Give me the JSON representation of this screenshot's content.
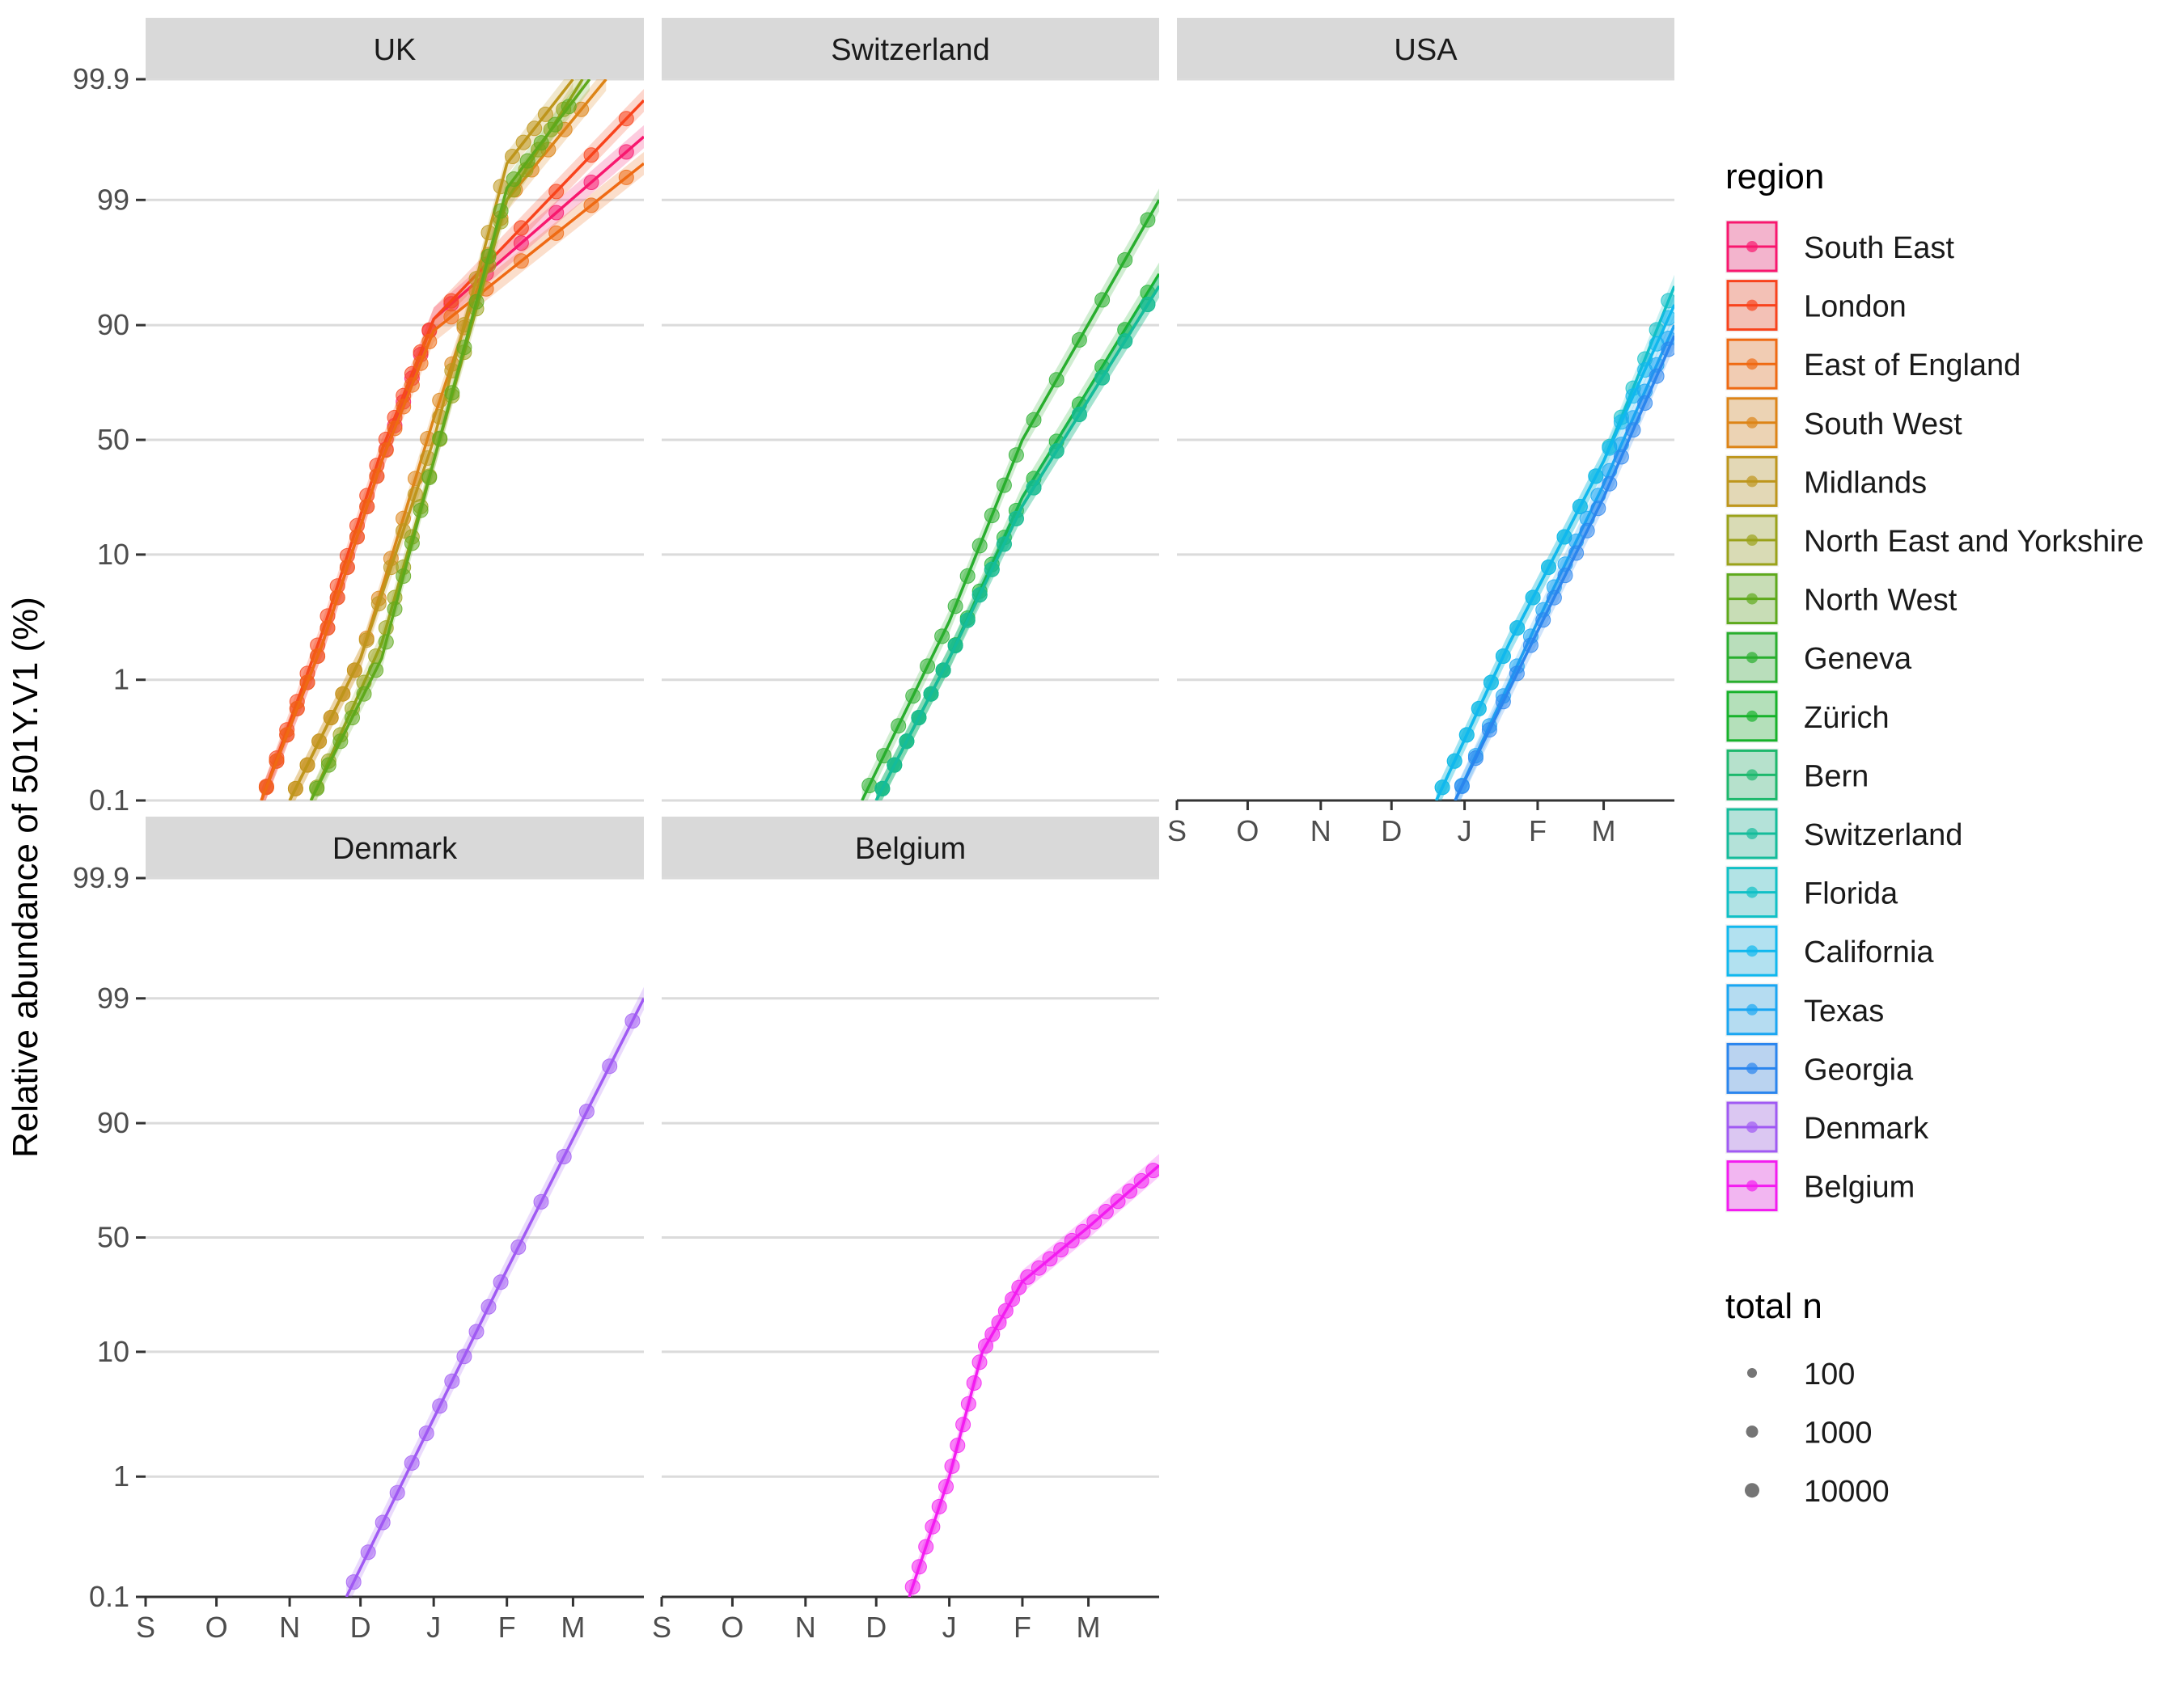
{
  "chart_data": {
    "type": "scatter",
    "title": "",
    "ylabel": "Relative abundance of 501Y.V1 (%)",
    "xlabel": "",
    "y_scale": "logit",
    "y_ticks": [
      0.1,
      1,
      10,
      50,
      90,
      99,
      99.9
    ],
    "y_tick_labels": [
      "0.1",
      "1",
      "10",
      "50",
      "90",
      "99",
      "99.9"
    ],
    "x_ticks": [
      "2020-09-01",
      "2020-10-01",
      "2020-11-01",
      "2020-12-01",
      "2021-01-01",
      "2021-02-01",
      "2021-03-01"
    ],
    "x_tick_labels": [
      "S",
      "O",
      "N",
      "D",
      "J",
      "F",
      "M"
    ],
    "x_range": [
      "2020-09-01",
      "2021-03-31"
    ],
    "grid": "horizontal major",
    "legend_placement": "right",
    "legend_region_title": "region",
    "legend_size_title": "total n",
    "size_legend": [
      "100",
      "1000",
      "10000"
    ],
    "regions": [
      {
        "name": "South East",
        "color": "#F8176E"
      },
      {
        "name": "London",
        "color": "#F8431C"
      },
      {
        "name": "East of England",
        "color": "#EF6A13"
      },
      {
        "name": "South West",
        "color": "#DD8417"
      },
      {
        "name": "Midlands",
        "color": "#BE961C"
      },
      {
        "name": "North East and Yorkshire",
        "color": "#9AA21A"
      },
      {
        "name": "North West",
        "color": "#5EA91C"
      },
      {
        "name": "Geneva",
        "color": "#29AE2E"
      },
      {
        "name": "Zürich",
        "color": "#17B22B"
      },
      {
        "name": "Bern",
        "color": "#1DB86D"
      },
      {
        "name": "Switzerland",
        "color": "#14BC9B"
      },
      {
        "name": "Florida",
        "color": "#10C0C6"
      },
      {
        "name": "California",
        "color": "#10B8EE"
      },
      {
        "name": "Texas",
        "color": "#1AA6F2"
      },
      {
        "name": "Georgia",
        "color": "#2A85EE"
      },
      {
        "name": "Denmark",
        "color": "#A05AF3"
      },
      {
        "name": "Belgium",
        "color": "#F31CF0"
      }
    ],
    "panels": [
      {
        "strip": "UK",
        "fits": [
          {
            "region": "South East",
            "points": [
              [
                "2020-10-20",
                0.1
              ],
              [
                "2020-11-15",
                2
              ],
              [
                "2020-12-10",
                40
              ],
              [
                "2021-01-01",
                91
              ],
              [
                "2021-03-31",
                99.7
              ]
            ]
          },
          {
            "region": "London",
            "points": [
              [
                "2020-10-20",
                0.1
              ],
              [
                "2020-11-15",
                2.5
              ],
              [
                "2020-12-10",
                45
              ],
              [
                "2021-01-01",
                91
              ],
              [
                "2021-03-31",
                99.85
              ]
            ]
          },
          {
            "region": "East of England",
            "points": [
              [
                "2020-10-20",
                0.1
              ],
              [
                "2020-11-15",
                2
              ],
              [
                "2020-12-10",
                40
              ],
              [
                "2021-01-01",
                89
              ],
              [
                "2021-03-31",
                99.5
              ]
            ]
          },
          {
            "region": "South West",
            "points": [
              [
                "2020-11-01",
                0.1
              ],
              [
                "2020-12-01",
                1.5
              ],
              [
                "2021-01-01",
                60
              ],
              [
                "2021-02-01",
                99
              ],
              [
                "2021-03-15",
                99.9
              ]
            ]
          },
          {
            "region": "Midlands",
            "points": [
              [
                "2020-11-01",
                0.1
              ],
              [
                "2020-12-01",
                1.5
              ],
              [
                "2021-01-01",
                50
              ],
              [
                "2021-02-01",
                99.5
              ],
              [
                "2021-03-01",
                99.9
              ]
            ]
          },
          {
            "region": "North East and Yorkshire",
            "points": [
              [
                "2020-11-10",
                0.1
              ],
              [
                "2020-12-10",
                2
              ],
              [
                "2021-01-01",
                40
              ],
              [
                "2021-02-01",
                99
              ],
              [
                "2021-03-05",
                99.9
              ]
            ]
          },
          {
            "region": "North West",
            "points": [
              [
                "2020-11-10",
                0.1
              ],
              [
                "2020-12-10",
                1.5
              ],
              [
                "2021-01-01",
                40
              ],
              [
                "2021-02-01",
                99.2
              ],
              [
                "2021-03-08",
                99.9
              ]
            ]
          }
        ]
      },
      {
        "strip": "Switzerland",
        "fits": [
          {
            "region": "Geneva",
            "points": [
              [
                "2020-11-25",
                0.1
              ],
              [
                "2021-01-01",
                3
              ],
              [
                "2021-02-01",
                50
              ],
              [
                "2021-03-31",
                99
              ]
            ]
          },
          {
            "region": "Zürich",
            "points": [
              [
                "2020-12-01",
                0.1
              ],
              [
                "2021-01-01",
                1.5
              ],
              [
                "2021-02-01",
                25
              ],
              [
                "2021-03-31",
                96
              ]
            ]
          },
          {
            "region": "Bern",
            "points": [
              [
                "2020-12-01",
                0.1
              ],
              [
                "2021-01-01",
                1.5
              ],
              [
                "2021-02-01",
                22
              ],
              [
                "2021-03-31",
                95
              ]
            ]
          },
          {
            "region": "Switzerland",
            "points": [
              [
                "2020-12-01",
                0.1
              ],
              [
                "2021-01-01",
                1.5
              ],
              [
                "2021-02-01",
                22
              ],
              [
                "2021-03-31",
                95
              ]
            ]
          }
        ]
      },
      {
        "strip": "USA",
        "fits": [
          {
            "region": "Florida",
            "points": [
              [
                "2020-12-20",
                0.1
              ],
              [
                "2021-01-20",
                2
              ],
              [
                "2021-03-01",
                40
              ],
              [
                "2021-03-31",
                95
              ]
            ]
          },
          {
            "region": "California",
            "points": [
              [
                "2020-12-20",
                0.1
              ],
              [
                "2021-01-20",
                2
              ],
              [
                "2021-03-01",
                40
              ],
              [
                "2021-03-31",
                93
              ]
            ]
          },
          {
            "region": "Texas",
            "points": [
              [
                "2020-12-28",
                0.1
              ],
              [
                "2021-02-01",
                3
              ],
              [
                "2021-03-01",
                30
              ],
              [
                "2021-03-31",
                90
              ]
            ]
          },
          {
            "region": "Georgia",
            "points": [
              [
                "2020-12-28",
                0.1
              ],
              [
                "2021-02-01",
                2.5
              ],
              [
                "2021-03-01",
                25
              ],
              [
                "2021-03-31",
                88
              ]
            ]
          }
        ]
      },
      {
        "strip": "Denmark",
        "fits": [
          {
            "region": "Denmark",
            "points": [
              [
                "2020-11-25",
                0.1
              ],
              [
                "2021-01-01",
                3
              ],
              [
                "2021-02-01",
                35
              ],
              [
                "2021-03-31",
                99
              ]
            ]
          }
        ]
      },
      {
        "strip": "Belgium",
        "fits": [
          {
            "region": "Belgium",
            "points": [
              [
                "2020-12-15",
                0.1
              ],
              [
                "2021-01-01",
                1
              ],
              [
                "2021-01-15",
                10
              ],
              [
                "2021-02-01",
                30
              ],
              [
                "2021-03-01",
                55
              ],
              [
                "2021-03-31",
                80
              ]
            ]
          }
        ]
      }
    ]
  }
}
